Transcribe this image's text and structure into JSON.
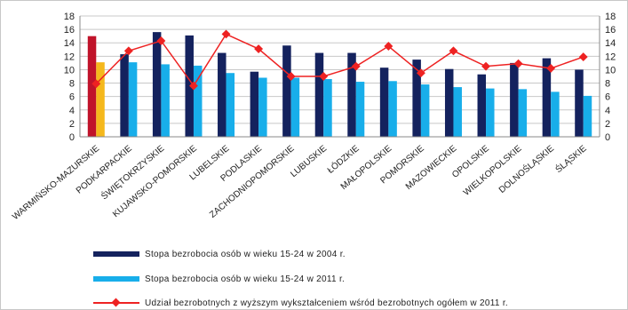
{
  "chart_data": {
    "type": "bar",
    "categories": [
      "WARMIŃSKO-MAZURSKIE",
      "PODKARPACKIE",
      "ŚWIĘTOKRZYSKIE",
      "KUJAWSKO-POMORSKIE",
      "LUBELSKIE",
      "PODLASKIE",
      "ZACHODNIOPOMORSKIE",
      "LUBUSKIE",
      "ŁÓDZKIE",
      "MAŁOPOLSKIE",
      "POMORSKIE",
      "MAZOWIECKIE",
      "OPOLSKIE",
      "WIELKOPOLSKIE",
      "DOLNOŚLĄSKIE",
      "ŚLĄSKIE"
    ],
    "series": [
      {
        "name": "Stopa bezrobocia osób w wieku 15-24 w 2004 r.",
        "type": "bar",
        "values": [
          15.0,
          12.3,
          15.6,
          15.1,
          12.5,
          9.7,
          13.6,
          12.5,
          12.5,
          10.3,
          11.5,
          10.1,
          9.3,
          11.0,
          11.7,
          10.0
        ]
      },
      {
        "name": "Stopa bezrobocia osób w wieku 15-24 w 2011 r.",
        "type": "bar",
        "values": [
          11.1,
          11.1,
          10.8,
          10.6,
          9.5,
          8.8,
          8.8,
          8.6,
          8.2,
          8.3,
          7.8,
          7.4,
          7.2,
          7.1,
          6.7,
          6.1
        ]
      },
      {
        "name": "Udział bezrobotnych z wyższym wykształceniem wśród bezrobotnych ogółem w 2011 r.",
        "type": "line",
        "values": [
          7.9,
          12.8,
          14.3,
          7.6,
          15.3,
          13.1,
          9.0,
          9.0,
          10.5,
          13.5,
          9.5,
          12.8,
          10.5,
          10.9,
          10.2,
          11.9
        ]
      }
    ],
    "highlight": {
      "index": 0,
      "colors": [
        "#c0132a",
        "#f5b81c"
      ]
    },
    "colors": {
      "series_2004": "#14225e",
      "series_2011": "#18aeea",
      "line": "#ee2222",
      "grid": "#c8c8c8"
    },
    "y_ticks_left": [
      "0",
      "2",
      "4",
      "6",
      "8",
      "10",
      "12",
      "14",
      "16",
      "18"
    ],
    "y_ticks_right": [
      "0",
      "2",
      "4",
      "6",
      "8",
      "10",
      "12",
      "14",
      "16",
      "18"
    ],
    "ylim": [
      0,
      18
    ],
    "y2lim": [
      0,
      18
    ],
    "grid": true,
    "legend_position": "bottom",
    "title": "",
    "xlabel": "",
    "ylabel": ""
  }
}
